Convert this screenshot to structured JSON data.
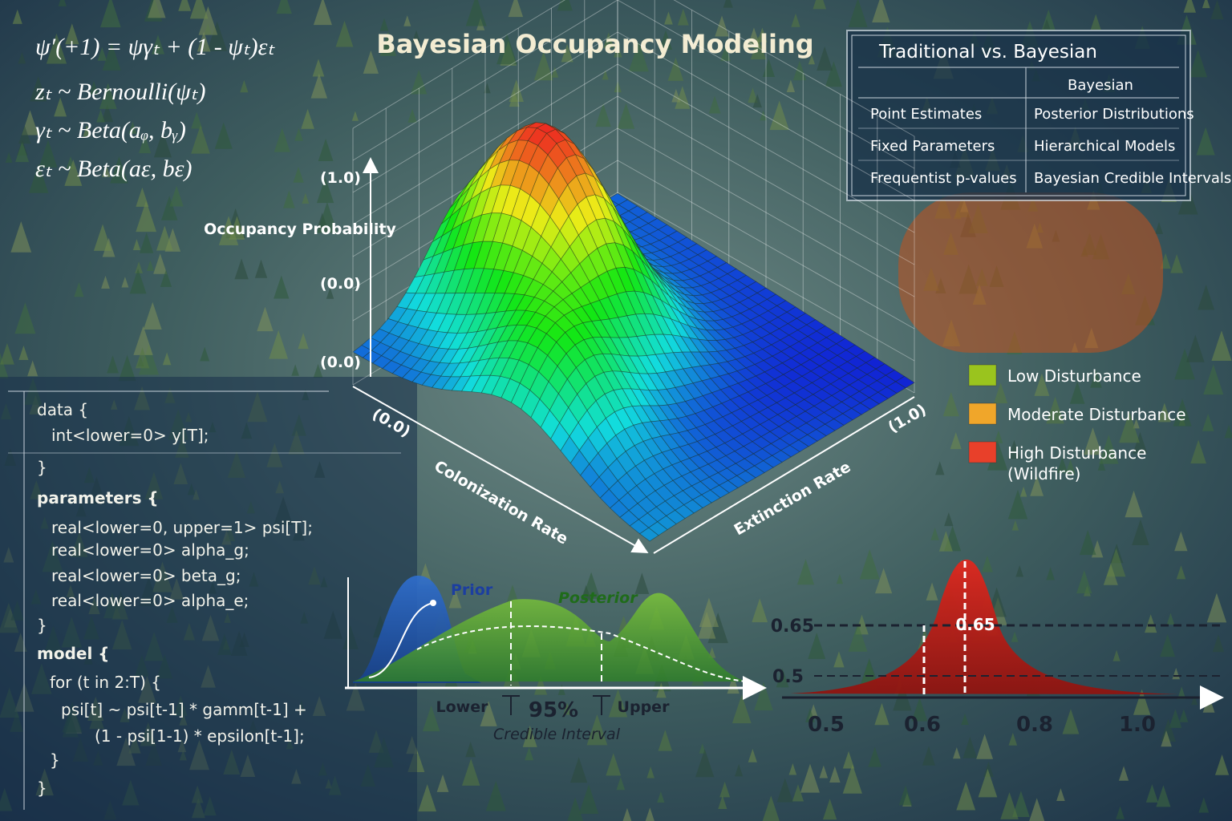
{
  "title": "Bayesian Occupancy Modeling",
  "equations": [
    "ψ′(+1) = ψγₜ + (1 - ψₜ)εₜ",
    "zₜ ~ Bernoulli(ψₜ)",
    "γₜ ~ Beta(aᵩ, bᵧ)",
    "εₜ ~ Beta(aε, bε)"
  ],
  "comparison_table": {
    "title": "Traditional vs. Bayesian",
    "column_header": "Bayesian",
    "rows": [
      [
        "Point Estimates",
        "Posterior Distributions"
      ],
      [
        "Fixed Parameters",
        "Hierarchical Models"
      ],
      [
        "Frequentist p-values",
        "Bayesian Credible Intervals"
      ]
    ]
  },
  "surface_plot": {
    "z_label": "Occupancy Probability",
    "z_tick_top": "(1.0)",
    "z_tick_mid": "(0.0)",
    "z_tick_bottom": "(0.0)",
    "x_tick_start": "(0.0)",
    "x_label": "Colonization Rate",
    "y_tick_end": "(1.0)",
    "y_label": "Extinction Rate"
  },
  "legend": [
    {
      "name": "Low Disturbance",
      "color": "#9ac41e"
    },
    {
      "name": "Moderate Disturbance",
      "color": "#f0a62a"
    },
    {
      "name": "High Disturbance (Wildfire)",
      "color": "#e8402a"
    }
  ],
  "code": [
    "data {",
    "int<lower=0> y[T];",
    "}",
    "parameters {",
    "real<lower=0, upper=1> psi[T];",
    "real<lower=0> alpha_g;",
    "real<lower=0> beta_g;",
    "real<lower=0> alpha_e;",
    "}",
    "model {",
    "for (t in 2:T) {",
    "psi[t] ~ psi[t-1] * gamm[t-1] +",
    "(1 - psi[1-1) * epsilon[t-1];",
    "}",
    "}"
  ],
  "prior_posterior_plot": {
    "prior_label": "Prior",
    "posterior_label": "Posterior",
    "lower_label": "Lower",
    "interval_percent": "95%",
    "upper_label": "Upper",
    "interval_caption": "Credible Interval"
  },
  "posterior_estimate_plot": {
    "y_tick_high": "0.65",
    "y_tick_low": "0.5",
    "peak_label": "0.65",
    "x_ticks": [
      "0.5",
      "0.6",
      "0.8",
      "1.0"
    ]
  }
}
